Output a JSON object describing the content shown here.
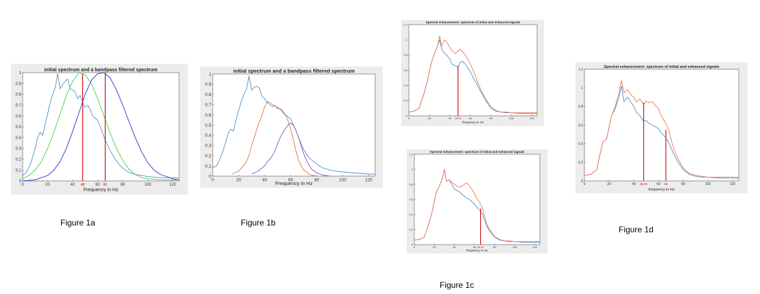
{
  "captions": {
    "a": "Figure 1a",
    "b": "Figure 1b",
    "c": "Figure 1c",
    "d": "Figure 1d"
  },
  "chart_data": [
    {
      "id": "fig1a",
      "type": "line",
      "title": "initial spectrum and a bandpass filtered spectrum",
      "xlabel": "Frequency in Hz",
      "ylabel": "",
      "xlim": [
        0,
        125
      ],
      "ylim": [
        0,
        1
      ],
      "xticks": [
        0,
        20,
        40,
        60,
        80,
        100,
        120
      ],
      "yticks": [
        0,
        0.1,
        0.2,
        0.3,
        0.4,
        0.5,
        0.6,
        0.7,
        0.8,
        0.9,
        1
      ],
      "grid": false,
      "series": [
        {
          "color": "#4a90c8",
          "x": [
            0,
            3,
            6,
            8,
            10,
            12,
            14,
            16,
            18,
            20,
            22,
            24,
            26,
            28,
            30,
            32,
            34,
            36,
            38,
            40,
            42,
            44,
            46,
            48,
            50,
            52,
            54,
            56,
            58,
            60,
            62,
            64,
            66,
            68,
            70,
            72,
            74,
            76,
            78,
            80,
            82,
            85,
            90,
            95,
            100,
            110,
            120,
            125
          ],
          "y": [
            0.05,
            0.08,
            0.15,
            0.22,
            0.3,
            0.4,
            0.45,
            0.42,
            0.52,
            0.62,
            0.72,
            0.8,
            0.86,
            0.99,
            0.85,
            0.89,
            0.92,
            0.94,
            0.85,
            0.84,
            0.82,
            0.76,
            0.79,
            0.72,
            0.68,
            0.7,
            0.66,
            0.6,
            0.58,
            0.56,
            0.5,
            0.44,
            0.38,
            0.33,
            0.28,
            0.24,
            0.2,
            0.17,
            0.14,
            0.12,
            0.1,
            0.08,
            0.06,
            0.05,
            0.04,
            0.03,
            0.03,
            0.03
          ]
        },
        {
          "color": "#3ad23a",
          "x": [
            0,
            5,
            10,
            15,
            20,
            25,
            30,
            35,
            40,
            45,
            50,
            55,
            60,
            65,
            70,
            75,
            80,
            85,
            90,
            95,
            100,
            110,
            120,
            125
          ],
          "y": [
            0.02,
            0.05,
            0.1,
            0.18,
            0.3,
            0.45,
            0.62,
            0.79,
            0.92,
            1.0,
            0.98,
            0.9,
            0.76,
            0.6,
            0.44,
            0.3,
            0.19,
            0.11,
            0.06,
            0.03,
            0.02,
            0.01,
            0.01,
            0.01
          ]
        },
        {
          "color": "#2b2bd0",
          "x": [
            0,
            10,
            20,
            25,
            30,
            35,
            40,
            45,
            50,
            55,
            60,
            65,
            70,
            75,
            80,
            85,
            90,
            95,
            100,
            105,
            110,
            120,
            125
          ],
          "y": [
            0.0,
            0.01,
            0.05,
            0.1,
            0.18,
            0.3,
            0.46,
            0.63,
            0.8,
            0.93,
            0.99,
            1.0,
            0.95,
            0.84,
            0.7,
            0.55,
            0.4,
            0.27,
            0.17,
            0.1,
            0.06,
            0.02,
            0.01
          ]
        }
      ],
      "vlines": [
        {
          "x": 48,
          "color": "#d00000",
          "top": 0.99,
          "label": "48"
        },
        {
          "x": 66,
          "color": "#d00000",
          "top": 1.0,
          "label": "66"
        }
      ]
    },
    {
      "id": "fig1b",
      "type": "line",
      "title": "initial spectrum and a bandpass filtered spectrum",
      "xlabel": "Frequency in Hz",
      "ylabel": "",
      "xlim": [
        0,
        125
      ],
      "ylim": [
        0,
        1
      ],
      "xticks": [
        0,
        20,
        40,
        60,
        80,
        100,
        120
      ],
      "yticks": [
        0,
        0.1,
        0.2,
        0.3,
        0.4,
        0.5,
        0.6,
        0.7,
        0.8,
        0.9,
        1
      ],
      "grid": false,
      "series": [
        {
          "color": "#4a90c8",
          "x": [
            0,
            3,
            6,
            8,
            10,
            12,
            14,
            16,
            18,
            20,
            22,
            24,
            26,
            28,
            30,
            32,
            34,
            36,
            38,
            40,
            42,
            44,
            46,
            48,
            50,
            52,
            54,
            56,
            58,
            60,
            62,
            64,
            66,
            68,
            70,
            72,
            74,
            76,
            78,
            80,
            82,
            85,
            90,
            95,
            100,
            110,
            120,
            125
          ],
          "y": [
            0.08,
            0.1,
            0.18,
            0.25,
            0.33,
            0.42,
            0.46,
            0.44,
            0.55,
            0.64,
            0.73,
            0.8,
            0.85,
            0.98,
            0.84,
            0.87,
            0.88,
            0.86,
            0.78,
            0.76,
            0.72,
            0.7,
            0.68,
            0.69,
            0.66,
            0.66,
            0.62,
            0.6,
            0.58,
            0.56,
            0.5,
            0.45,
            0.38,
            0.32,
            0.26,
            0.22,
            0.18,
            0.16,
            0.14,
            0.12,
            0.1,
            0.08,
            0.06,
            0.05,
            0.04,
            0.03,
            0.02,
            0.02
          ]
        },
        {
          "color": "#e07040",
          "x": [
            15,
            20,
            25,
            28,
            30,
            32,
            35,
            38,
            40,
            42,
            44,
            46,
            48,
            50,
            52,
            54,
            56,
            58,
            60,
            62,
            64,
            66,
            68,
            70,
            72,
            74,
            76,
            80
          ],
          "y": [
            0.02,
            0.05,
            0.12,
            0.2,
            0.3,
            0.38,
            0.5,
            0.6,
            0.68,
            0.73,
            0.72,
            0.7,
            0.69,
            0.67,
            0.66,
            0.64,
            0.6,
            0.54,
            0.46,
            0.36,
            0.25,
            0.16,
            0.1,
            0.06,
            0.04,
            0.02,
            0.01,
            0.0
          ]
        },
        {
          "color": "#8a50b8",
          "x": [
            30,
            35,
            40,
            42,
            45,
            48,
            50,
            52,
            55,
            58,
            60,
            62,
            64,
            66,
            68,
            70,
            72,
            74,
            76,
            80,
            85,
            90
          ],
          "y": [
            0.02,
            0.05,
            0.1,
            0.14,
            0.18,
            0.25,
            0.32,
            0.38,
            0.45,
            0.5,
            0.52,
            0.5,
            0.45,
            0.38,
            0.3,
            0.22,
            0.16,
            0.11,
            0.07,
            0.03,
            0.01,
            0.0
          ]
        }
      ],
      "vlines": []
    },
    {
      "id": "fig1c_top",
      "type": "line",
      "title": "Spectral enhancement: spectrum of initial and enhanced signals",
      "xlabel": "frequency in Hz",
      "ylabel": "",
      "xlim": [
        0,
        125
      ],
      "ylim": [
        0,
        1.2
      ],
      "xticks": [
        0,
        20,
        40,
        60,
        80,
        100,
        120
      ],
      "yticks": [
        0,
        0.2,
        0.4,
        0.6,
        0.8,
        1,
        1.2
      ],
      "grid": false,
      "series": [
        {
          "color": "#4a90c8",
          "x": [
            0,
            5,
            10,
            15,
            18,
            20,
            22,
            25,
            28,
            30,
            32,
            35,
            38,
            40,
            42,
            45,
            48,
            50,
            52,
            55,
            58,
            60,
            62,
            65,
            70,
            75,
            80,
            85,
            90,
            95,
            100,
            110,
            120,
            125
          ],
          "y": [
            0.05,
            0.06,
            0.1,
            0.3,
            0.45,
            0.58,
            0.7,
            0.82,
            0.92,
            1.0,
            0.88,
            0.82,
            0.78,
            0.75,
            0.68,
            0.66,
            0.64,
            0.7,
            0.72,
            0.68,
            0.62,
            0.58,
            0.52,
            0.45,
            0.32,
            0.2,
            0.1,
            0.06,
            0.05,
            0.04,
            0.04,
            0.03,
            0.03,
            0.03
          ]
        },
        {
          "color": "#f07850",
          "x": [
            0,
            5,
            10,
            15,
            18,
            20,
            22,
            25,
            28,
            30,
            32,
            35,
            38,
            40,
            42,
            45,
            48,
            50,
            52,
            55,
            58,
            60,
            62,
            65,
            70,
            75,
            80,
            85,
            90,
            95,
            100,
            110,
            120,
            125
          ],
          "y": [
            0.05,
            0.06,
            0.1,
            0.3,
            0.45,
            0.58,
            0.7,
            0.82,
            0.92,
            1.05,
            0.92,
            1.0,
            0.95,
            0.9,
            0.86,
            0.82,
            0.85,
            0.88,
            0.85,
            0.8,
            0.74,
            0.68,
            0.62,
            0.52,
            0.35,
            0.22,
            0.12,
            0.07,
            0.05,
            0.05,
            0.04,
            0.04,
            0.04,
            0.04
          ]
        }
      ],
      "vlines": [
        {
          "x": 48,
          "color": "#d00000",
          "top": 0.66,
          "label": "48 Hz"
        }
      ]
    },
    {
      "id": "fig1c_bottom",
      "type": "line",
      "title": "Spectral enhancement: spectrum of initial and enhanced signals",
      "xlabel": "frequency in Hz",
      "ylabel": "",
      "xlim": [
        0,
        125
      ],
      "ylim": [
        0,
        1.2
      ],
      "xticks": [
        0,
        20,
        40,
        60,
        80,
        100,
        120
      ],
      "yticks": [
        0,
        0.2,
        0.4,
        0.6,
        0.8,
        1,
        1.2
      ],
      "grid": false,
      "series": [
        {
          "color": "#4a90c8",
          "x": [
            0,
            5,
            10,
            15,
            18,
            20,
            22,
            25,
            28,
            30,
            32,
            35,
            38,
            40,
            42,
            45,
            48,
            50,
            52,
            55,
            58,
            60,
            62,
            65,
            68,
            70,
            72,
            75,
            80,
            85,
            90,
            95,
            100,
            110,
            120,
            125
          ],
          "y": [
            0.06,
            0.07,
            0.1,
            0.3,
            0.45,
            0.58,
            0.7,
            0.78,
            0.88,
            1.0,
            0.84,
            0.86,
            0.78,
            0.74,
            0.72,
            0.7,
            0.66,
            0.64,
            0.62,
            0.6,
            0.56,
            0.54,
            0.5,
            0.46,
            0.4,
            0.32,
            0.25,
            0.18,
            0.1,
            0.06,
            0.05,
            0.04,
            0.04,
            0.03,
            0.03,
            0.03
          ]
        },
        {
          "color": "#f07850",
          "x": [
            0,
            5,
            10,
            15,
            18,
            20,
            22,
            25,
            28,
            30,
            32,
            35,
            38,
            40,
            42,
            45,
            48,
            50,
            52,
            55,
            58,
            60,
            62,
            65,
            68,
            70,
            72,
            75,
            80,
            85,
            90,
            95,
            100,
            110,
            120,
            125
          ],
          "y": [
            0.06,
            0.07,
            0.1,
            0.3,
            0.45,
            0.58,
            0.7,
            0.78,
            0.88,
            1.0,
            0.84,
            0.86,
            0.82,
            0.8,
            0.78,
            0.76,
            0.78,
            0.8,
            0.82,
            0.78,
            0.72,
            0.68,
            0.62,
            0.56,
            0.48,
            0.38,
            0.28,
            0.2,
            0.11,
            0.07,
            0.05,
            0.05,
            0.04,
            0.04,
            0.04,
            0.04
          ]
        }
      ],
      "vlines": [
        {
          "x": 66,
          "color": "#d00000",
          "top": 0.48,
          "label": "66 Hz"
        }
      ]
    },
    {
      "id": "fig1d",
      "type": "line",
      "title": "Spectral enhancement: spectrum of initial and enhanced signals",
      "xlabel": "frequency in Hz",
      "ylabel": "",
      "xlim": [
        0,
        125
      ],
      "ylim": [
        0,
        1.2
      ],
      "xticks": [
        0,
        20,
        40,
        60,
        80,
        100,
        120
      ],
      "yticks": [
        0,
        0.2,
        0.4,
        0.6,
        0.8,
        1,
        1.2
      ],
      "grid": false,
      "series": [
        {
          "color": "#4a90c8",
          "x": [
            0,
            5,
            10,
            12,
            15,
            18,
            20,
            22,
            25,
            28,
            30,
            32,
            35,
            38,
            40,
            42,
            45,
            48,
            50,
            52,
            55,
            58,
            60,
            62,
            65,
            68,
            70,
            72,
            75,
            80,
            85,
            90,
            95,
            100,
            110,
            120,
            125
          ],
          "y": [
            0.06,
            0.07,
            0.12,
            0.25,
            0.42,
            0.45,
            0.58,
            0.7,
            0.78,
            0.9,
            1.02,
            0.85,
            0.9,
            0.84,
            0.8,
            0.74,
            0.7,
            0.64,
            0.65,
            0.62,
            0.6,
            0.58,
            0.56,
            0.52,
            0.48,
            0.42,
            0.36,
            0.3,
            0.22,
            0.12,
            0.07,
            0.05,
            0.04,
            0.04,
            0.03,
            0.03,
            0.03
          ]
        },
        {
          "color": "#f07850",
          "x": [
            0,
            5,
            10,
            12,
            15,
            18,
            20,
            22,
            25,
            28,
            30,
            32,
            35,
            38,
            40,
            42,
            45,
            48,
            50,
            52,
            55,
            58,
            60,
            62,
            65,
            68,
            70,
            72,
            75,
            80,
            85,
            90,
            95,
            100,
            110,
            120,
            125
          ],
          "y": [
            0.06,
            0.07,
            0.12,
            0.25,
            0.42,
            0.45,
            0.58,
            0.7,
            0.8,
            0.95,
            1.08,
            0.95,
            0.98,
            0.92,
            0.9,
            0.85,
            0.88,
            0.82,
            0.86,
            0.84,
            0.85,
            0.8,
            0.78,
            0.7,
            0.64,
            0.56,
            0.46,
            0.36,
            0.26,
            0.14,
            0.08,
            0.06,
            0.05,
            0.04,
            0.04,
            0.04,
            0.04
          ]
        }
      ],
      "vlines": [
        {
          "x": 48,
          "color": "#d00000",
          "top": 0.84,
          "label": "48 Hz"
        },
        {
          "x": 66,
          "color": "#d00000",
          "top": 0.55,
          "label": "66"
        }
      ]
    }
  ]
}
